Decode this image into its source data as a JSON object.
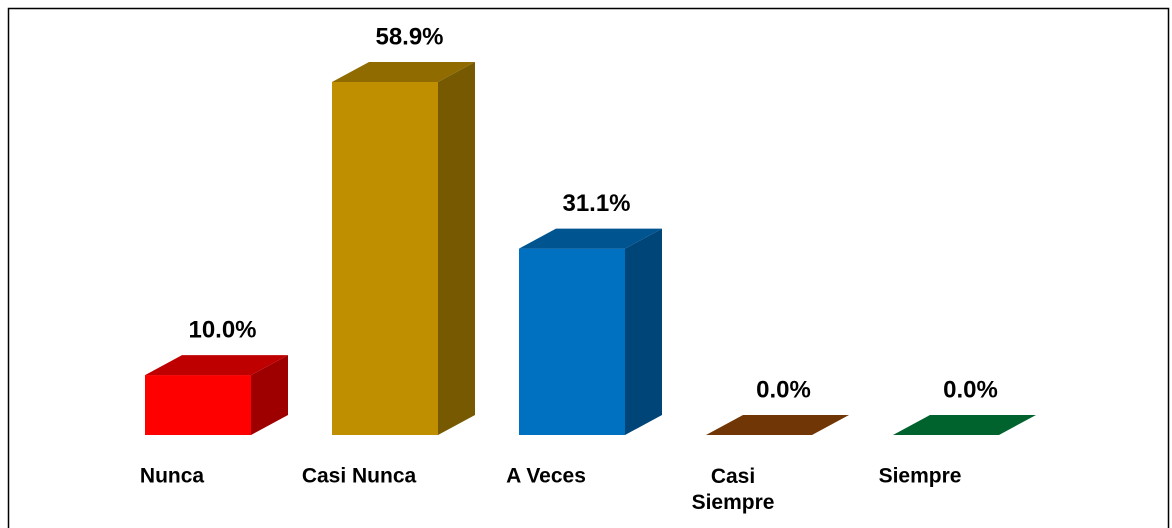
{
  "chart_data": {
    "type": "bar3d",
    "categories": [
      "Nunca",
      "Casi Nunca",
      "A Veces",
      "Casi Siempre",
      "Siempre"
    ],
    "values": [
      10.0,
      58.9,
      31.1,
      0.0,
      0.0
    ],
    "value_labels": [
      "10.0%",
      "58.9%",
      "31.1%",
      "0.0%",
      "0.0%"
    ],
    "colors": [
      "#ff0000",
      "#bf8f00",
      "#0070c0",
      "#974806",
      "#00843d"
    ]
  }
}
